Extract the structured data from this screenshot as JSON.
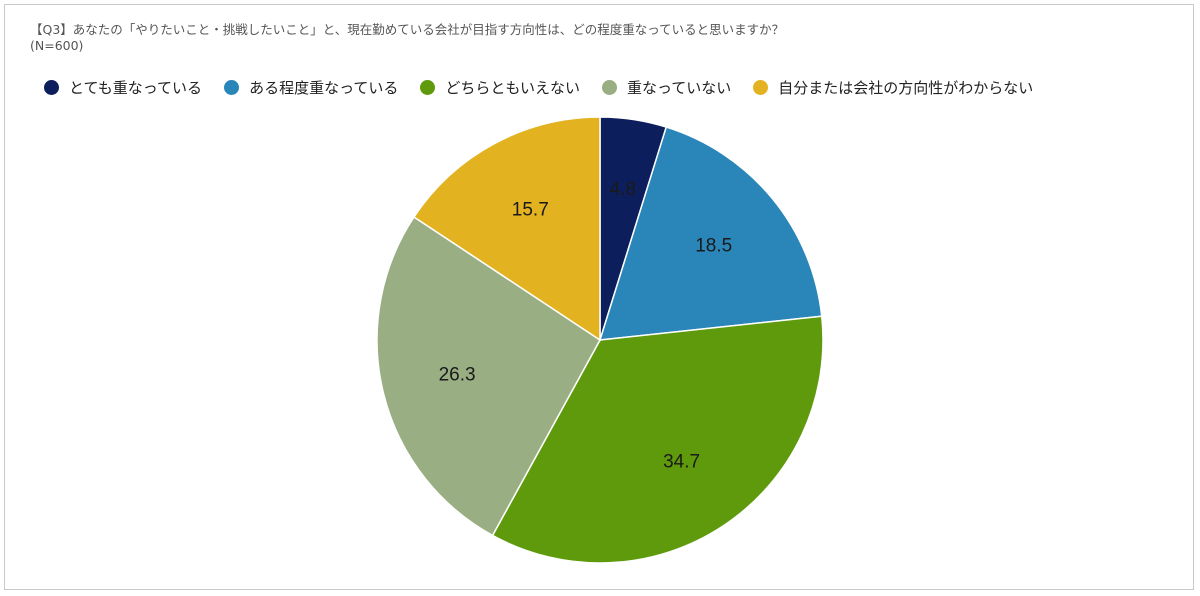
{
  "chart": {
    "title_line1": "【Q3】あなたの「やりたいこと・挑戦したいこと」と、現在勤めている会社が目指す方向性は、どの程度重なっていると思いますか？",
    "title_line2": "(N=600)"
  },
  "chart_data": {
    "type": "pie",
    "title": "【Q3】あなたの「やりたいこと・挑戦したいこと」と、現在勤めている会社が目指す方向性は、どの程度重なっていると思いますか？",
    "subtitle": "(N=600)",
    "legend_position": "top",
    "start_angle_deg": 0,
    "direction": "clockwise",
    "slices": [
      {
        "label": "とても重なっている",
        "value": 4.8,
        "value_label": "4.8",
        "color": "#0d1e5c"
      },
      {
        "label": "ある程度重なっている",
        "value": 18.5,
        "value_label": "18.5",
        "color": "#2a86b8"
      },
      {
        "label": "どちらともいえない",
        "value": 34.7,
        "value_label": "34.7",
        "color": "#5f9a0c"
      },
      {
        "label": "重なっていない",
        "value": 26.3,
        "value_label": "26.3",
        "color": "#9aae84"
      },
      {
        "label": "自分または会社の方向性がわからない",
        "value": 15.7,
        "value_label": "15.7",
        "color": "#e2b220"
      }
    ]
  }
}
